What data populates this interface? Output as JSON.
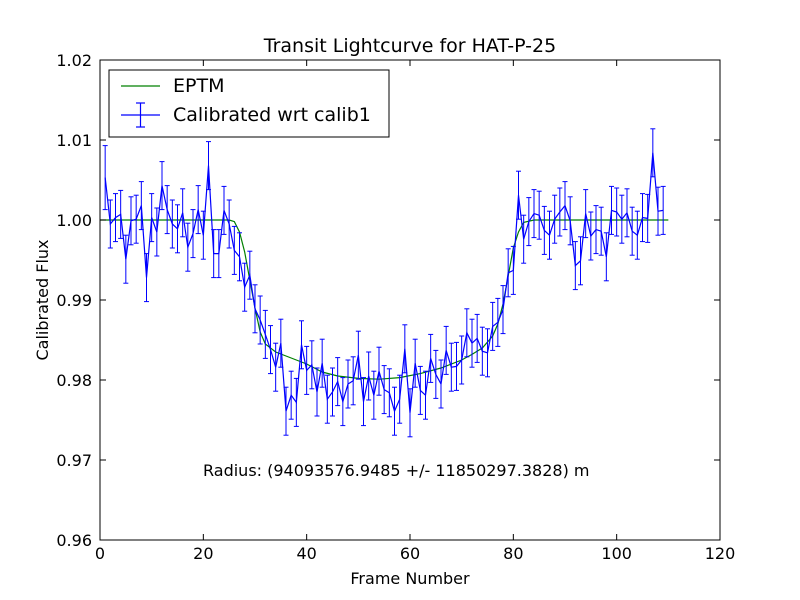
{
  "chart_data": {
    "type": "line",
    "title": "Transit Lightcurve for HAT-P-25",
    "xlabel": "Frame Number",
    "ylabel": "Calibrated Flux",
    "xlim": [
      0,
      120
    ],
    "ylim": [
      0.96,
      1.02
    ],
    "xticks": [
      0,
      20,
      40,
      60,
      80,
      100,
      120
    ],
    "xtick_labels": [
      "0",
      "20",
      "40",
      "60",
      "80",
      "100",
      "120"
    ],
    "yticks": [
      0.96,
      0.97,
      0.98,
      0.99,
      1.0,
      1.01,
      1.02
    ],
    "ytick_labels": [
      "0.96",
      "0.97",
      "0.98",
      "0.99",
      "1.00",
      "1.01",
      "1.02"
    ],
    "grid": false,
    "legend_position": "top-left",
    "annotation": "Radius: (94093576.9485 +/- 11850297.3828) m",
    "series": [
      {
        "name": "EPTM",
        "color": "#008000",
        "style": "line",
        "x": [
          0,
          25,
          26,
          27,
          28,
          29,
          30,
          31,
          32,
          34,
          36,
          38,
          40,
          43,
          46,
          50,
          54,
          58,
          62,
          66,
          70,
          72,
          74,
          76,
          77,
          78,
          79,
          80,
          81,
          82,
          84,
          86,
          110
        ],
        "y": [
          1.0,
          1.0,
          0.9998,
          0.9985,
          0.996,
          0.9925,
          0.989,
          0.986,
          0.9845,
          0.9835,
          0.983,
          0.9825,
          0.982,
          0.981,
          0.9805,
          0.9802,
          0.9801,
          0.9803,
          0.9808,
          0.9815,
          0.9825,
          0.9832,
          0.984,
          0.9855,
          0.987,
          0.9895,
          0.993,
          0.9965,
          0.9985,
          0.9997,
          1.0,
          1.0,
          1.0
        ]
      },
      {
        "name": "Calibrated wrt calib1",
        "color": "#0000ff",
        "style": "errorbar",
        "x": [
          1,
          2,
          3,
          4,
          5,
          6,
          7,
          8,
          9,
          10,
          11,
          12,
          13,
          14,
          15,
          16,
          17,
          18,
          19,
          20,
          21,
          22,
          23,
          24,
          25,
          26,
          27,
          28,
          29,
          30,
          31,
          32,
          33,
          34,
          35,
          36,
          37,
          38,
          39,
          40,
          41,
          42,
          43,
          44,
          45,
          46,
          47,
          48,
          49,
          50,
          51,
          52,
          53,
          54,
          55,
          56,
          57,
          58,
          59,
          60,
          61,
          62,
          63,
          64,
          65,
          66,
          67,
          68,
          69,
          70,
          71,
          72,
          73,
          74,
          75,
          76,
          77,
          78,
          79,
          80,
          81,
          82,
          83,
          84,
          85,
          86,
          87,
          88,
          89,
          90,
          91,
          92,
          93,
          94,
          95,
          96,
          97,
          98,
          99,
          100,
          101,
          102,
          103,
          104,
          105,
          106,
          107,
          108,
          109
        ],
        "y": [
          1.0053,
          0.9995,
          1.0003,
          1.0007,
          0.9951,
          0.9999,
          1.0001,
          1.0018,
          0.9928,
          1.0003,
          0.9985,
          1.0043,
          1.0013,
          0.9995,
          0.9989,
          1.0009,
          0.9966,
          0.9983,
          1.0013,
          0.9981,
          1.0068,
          0.9958,
          0.9958,
          1.0012,
          0.9995,
          0.9962,
          0.9954,
          0.9916,
          0.9931,
          0.9889,
          0.9875,
          0.9857,
          0.9838,
          0.9816,
          0.9846,
          0.9761,
          0.9781,
          0.9772,
          0.9844,
          0.9812,
          0.9819,
          0.9785,
          0.9821,
          0.9776,
          0.9785,
          0.9798,
          0.9773,
          0.9795,
          0.9799,
          0.9831,
          0.9773,
          0.9805,
          0.9781,
          0.9811,
          0.9788,
          0.9784,
          0.9761,
          0.9776,
          0.9839,
          0.9759,
          0.9821,
          0.9787,
          0.9781,
          0.9827,
          0.9807,
          0.9795,
          0.9837,
          0.9816,
          0.9817,
          0.9825,
          0.9859,
          0.9846,
          0.9852,
          0.9836,
          0.9834,
          0.9867,
          0.9872,
          0.9888,
          0.9934,
          0.9937,
          1.0031,
          0.9976,
          0.9998,
          1.0008,
          1.0006,
          0.9987,
          0.9981,
          1.0001,
          1.001,
          1.0018,
          0.9999,
          0.9943,
          0.9949,
          1.0008,
          0.998,
          0.9988,
          0.9986,
          0.9954,
          1.0012,
          1.001,
          1.0001,
          1.0009,
          0.9986,
          0.9981,
          1.0003,
          1.0002,
          1.0084,
          1.0011,
          1.0012
        ],
        "yerr": [
          0.004,
          0.003,
          0.003,
          0.003,
          0.003,
          0.003,
          0.003,
          0.003,
          0.003,
          0.003,
          0.003,
          0.003,
          0.003,
          0.003,
          0.003,
          0.003,
          0.003,
          0.003,
          0.003,
          0.003,
          0.003,
          0.003,
          0.003,
          0.003,
          0.003,
          0.003,
          0.003,
          0.003,
          0.003,
          0.003,
          0.003,
          0.003,
          0.003,
          0.003,
          0.003,
          0.003,
          0.003,
          0.003,
          0.003,
          0.003,
          0.003,
          0.003,
          0.003,
          0.003,
          0.003,
          0.003,
          0.003,
          0.003,
          0.003,
          0.003,
          0.003,
          0.003,
          0.003,
          0.003,
          0.003,
          0.003,
          0.003,
          0.003,
          0.003,
          0.003,
          0.003,
          0.003,
          0.003,
          0.003,
          0.003,
          0.003,
          0.003,
          0.003,
          0.003,
          0.003,
          0.003,
          0.003,
          0.003,
          0.003,
          0.003,
          0.003,
          0.003,
          0.003,
          0.003,
          0.003,
          0.003,
          0.003,
          0.003,
          0.003,
          0.003,
          0.003,
          0.003,
          0.003,
          0.003,
          0.003,
          0.003,
          0.003,
          0.003,
          0.003,
          0.003,
          0.003,
          0.003,
          0.003,
          0.003,
          0.003,
          0.003,
          0.003,
          0.003,
          0.003,
          0.003,
          0.003,
          0.003,
          0.003,
          0.003
        ]
      }
    ]
  }
}
